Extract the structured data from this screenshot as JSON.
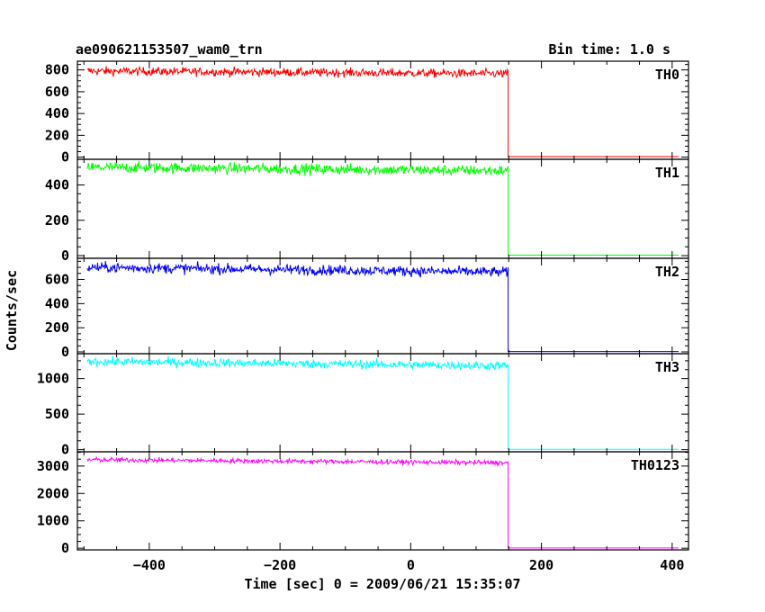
{
  "chart_data": {
    "type": "line",
    "title": "ae090621153507_wam0_trn",
    "subtitle": "Bin time: 1.0 s",
    "xlabel": "Time [sec] 0 = 2009/06/21 15:35:07",
    "ylabel": "Counts/sec",
    "xlim": [
      -510,
      425
    ],
    "x_ticks": [
      -400,
      -200,
      0,
      200,
      400
    ],
    "x_tick_labels": [
      "−400",
      "−200",
      "0",
      "200",
      "400"
    ],
    "grid": false,
    "bin_time_s": 1.0,
    "series": [
      {
        "name": "TH0",
        "color": "#ff0000",
        "ylim": [
          -20,
          880
        ],
        "y_ticks": [
          0,
          200,
          400,
          600,
          800
        ],
        "x_start": -495,
        "x_cut": 149,
        "x_end": 410,
        "level_start": 790,
        "level_end": 765,
        "noise": 28,
        "after": 5
      },
      {
        "name": "TH1",
        "color": "#00ff00",
        "ylim": [
          -15,
          545
        ],
        "y_ticks": [
          0,
          200,
          400
        ],
        "x_start": -495,
        "x_cut": 149,
        "x_end": 410,
        "level_start": 500,
        "level_end": 480,
        "noise": 22,
        "after": 3
      },
      {
        "name": "TH2",
        "color": "#0000ff",
        "ylim": [
          -15,
          775
        ],
        "y_ticks": [
          0,
          200,
          400,
          600
        ],
        "x_start": -495,
        "x_cut": 149,
        "x_end": 410,
        "level_start": 700,
        "level_end": 660,
        "noise": 30,
        "after": 3
      },
      {
        "name": "TH3",
        "color": "#00ffff",
        "ylim": [
          -30,
          1350
        ],
        "y_ticks": [
          0,
          500,
          1000
        ],
        "x_start": -495,
        "x_cut": 149,
        "x_end": 410,
        "level_start": 1240,
        "level_end": 1180,
        "noise": 45,
        "after": 5
      },
      {
        "name": "TH0123",
        "color": "#ff00ff",
        "ylim": [
          -60,
          3520
        ],
        "y_ticks": [
          0,
          1000,
          2000,
          3000
        ],
        "x_start": -495,
        "x_cut": 149,
        "x_end": 410,
        "level_start": 3230,
        "level_end": 3120,
        "noise": 60,
        "after": 10
      }
    ]
  }
}
